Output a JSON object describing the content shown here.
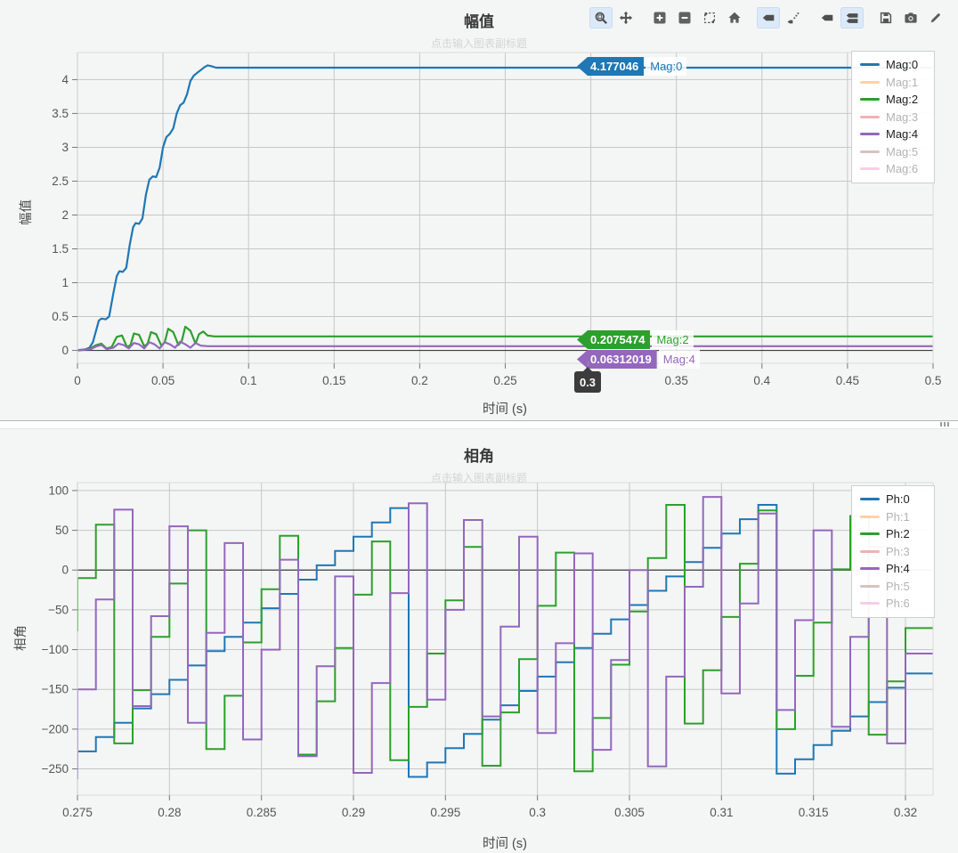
{
  "page": {
    "background": "#f4f5f5",
    "plot_background": "#f4f5f5",
    "grid_color": "#c7c7c7",
    "zero_line_color": "#3d3d3d",
    "axis_line_color": "#9a9a9a",
    "accent_active_tool": "#dce9f8"
  },
  "toolbar": {
    "tools": [
      {
        "name": "box-zoom",
        "icon": "box-zoom-icon",
        "active": true,
        "group_start": false
      },
      {
        "name": "pan",
        "icon": "pan-icon",
        "active": false,
        "group_start": false
      },
      {
        "name": "zoom-in",
        "icon": "plus-square-icon",
        "active": false,
        "group_start": true
      },
      {
        "name": "zoom-out",
        "icon": "minus-square-icon",
        "active": false,
        "group_start": false
      },
      {
        "name": "zoom-extent",
        "icon": "expand-icon",
        "active": false,
        "group_start": false
      },
      {
        "name": "reset-home",
        "icon": "home-icon",
        "active": false,
        "group_start": false
      },
      {
        "name": "hover-tag",
        "icon": "tag-icon",
        "active": true,
        "group_start": true
      },
      {
        "name": "point-trail",
        "icon": "trail-icon",
        "active": false,
        "group_start": false
      },
      {
        "name": "single-tag",
        "icon": "tag-icon",
        "active": false,
        "group_start": true
      },
      {
        "name": "stacked-tags",
        "icon": "stacked-tags-icon",
        "active": true,
        "group_start": false
      },
      {
        "name": "save",
        "icon": "floppy-icon",
        "active": false,
        "group_start": true
      },
      {
        "name": "snapshot",
        "icon": "camera-icon",
        "active": false,
        "group_start": false
      },
      {
        "name": "edit",
        "icon": "pencil-icon",
        "active": false,
        "group_start": false
      }
    ]
  },
  "chart_data": [
    {
      "type": "line",
      "title": "幅值",
      "subtitle": "点击输入图表副标题",
      "xlabel": "时间 (s)",
      "ylabel": "幅值",
      "xlim": [
        0,
        0.5
      ],
      "ylim": [
        -0.19,
        4.4
      ],
      "grid": true,
      "legend_position": "top-right",
      "xticks": {
        "values": [
          0,
          0.05,
          0.1,
          0.15,
          0.2,
          0.25,
          0.3,
          0.35,
          0.4,
          0.45,
          0.5
        ],
        "labels": [
          "0",
          "0.05",
          "0.1",
          "0.15",
          "0.2",
          "0.25",
          "0.3",
          "0.35",
          "0.4",
          "0.45",
          "0.5"
        ]
      },
      "yticks": {
        "values": [
          0,
          0.5,
          1,
          1.5,
          2,
          2.5,
          3,
          3.5,
          4
        ],
        "labels": [
          "0",
          "0.5",
          "1",
          "1.5",
          "2",
          "2.5",
          "3",
          "3.5",
          "4"
        ]
      },
      "series": [
        {
          "name": "Mag:0",
          "color": "#1f77b4",
          "muted": false,
          "points": [
            [
              0,
              0
            ],
            [
              0.004,
              0.01
            ],
            [
              0.007,
              0.04
            ],
            [
              0.009,
              0.12
            ],
            [
              0.011,
              0.3
            ],
            [
              0.0125,
              0.44
            ],
            [
              0.014,
              0.47
            ],
            [
              0.0165,
              0.46
            ],
            [
              0.0185,
              0.5
            ],
            [
              0.021,
              0.85
            ],
            [
              0.023,
              1.1
            ],
            [
              0.0245,
              1.17
            ],
            [
              0.0265,
              1.16
            ],
            [
              0.0285,
              1.22
            ],
            [
              0.0305,
              1.55
            ],
            [
              0.0325,
              1.82
            ],
            [
              0.034,
              1.88
            ],
            [
              0.036,
              1.87
            ],
            [
              0.038,
              1.95
            ],
            [
              0.04,
              2.3
            ],
            [
              0.042,
              2.52
            ],
            [
              0.044,
              2.57
            ],
            [
              0.046,
              2.56
            ],
            [
              0.048,
              2.7
            ],
            [
              0.05,
              3.0
            ],
            [
              0.052,
              3.15
            ],
            [
              0.054,
              3.2
            ],
            [
              0.056,
              3.28
            ],
            [
              0.058,
              3.5
            ],
            [
              0.06,
              3.62
            ],
            [
              0.062,
              3.66
            ],
            [
              0.064,
              3.78
            ],
            [
              0.066,
              3.98
            ],
            [
              0.068,
              4.06
            ],
            [
              0.07,
              4.1
            ],
            [
              0.072,
              4.14
            ],
            [
              0.074,
              4.18
            ],
            [
              0.076,
              4.21
            ],
            [
              0.078,
              4.2
            ],
            [
              0.081,
              4.177
            ],
            [
              0.5,
              4.177046
            ]
          ]
        },
        {
          "name": "Mag:1",
          "color": "#ff7f0e",
          "muted": true,
          "points": []
        },
        {
          "name": "Mag:2",
          "color": "#2ca02c",
          "muted": false,
          "points": [
            [
              0,
              0.005
            ],
            [
              0.007,
              0.02
            ],
            [
              0.011,
              0.08
            ],
            [
              0.014,
              0.1
            ],
            [
              0.017,
              0.03
            ],
            [
              0.02,
              0.05
            ],
            [
              0.023,
              0.2
            ],
            [
              0.026,
              0.22
            ],
            [
              0.029,
              0.05
            ],
            [
              0.031,
              0.08
            ],
            [
              0.033,
              0.25
            ],
            [
              0.036,
              0.23
            ],
            [
              0.039,
              0.06
            ],
            [
              0.041,
              0.1
            ],
            [
              0.043,
              0.27
            ],
            [
              0.046,
              0.24
            ],
            [
              0.049,
              0.07
            ],
            [
              0.051,
              0.12
            ],
            [
              0.053,
              0.32
            ],
            [
              0.056,
              0.27
            ],
            [
              0.059,
              0.08
            ],
            [
              0.061,
              0.14
            ],
            [
              0.063,
              0.35
            ],
            [
              0.066,
              0.29
            ],
            [
              0.069,
              0.1
            ],
            [
              0.071,
              0.24
            ],
            [
              0.0735,
              0.28
            ],
            [
              0.076,
              0.22
            ],
            [
              0.08,
              0.2075
            ],
            [
              0.5,
              0.2075474
            ]
          ]
        },
        {
          "name": "Mag:3",
          "color": "#d62728",
          "muted": true,
          "points": []
        },
        {
          "name": "Mag:4",
          "color": "#9467bd",
          "muted": false,
          "points": [
            [
              0,
              0.003
            ],
            [
              0.008,
              0.02
            ],
            [
              0.011,
              0.06
            ],
            [
              0.014,
              0.08
            ],
            [
              0.017,
              0.02
            ],
            [
              0.021,
              0.04
            ],
            [
              0.024,
              0.1
            ],
            [
              0.027,
              0.08
            ],
            [
              0.03,
              0.03
            ],
            [
              0.033,
              0.11
            ],
            [
              0.036,
              0.09
            ],
            [
              0.039,
              0.03
            ],
            [
              0.042,
              0.12
            ],
            [
              0.045,
              0.09
            ],
            [
              0.048,
              0.03
            ],
            [
              0.051,
              0.12
            ],
            [
              0.054,
              0.09
            ],
            [
              0.057,
              0.04
            ],
            [
              0.06,
              0.13
            ],
            [
              0.063,
              0.09
            ],
            [
              0.066,
              0.04
            ],
            [
              0.069,
              0.11
            ],
            [
              0.072,
              0.07
            ],
            [
              0.076,
              0.063
            ],
            [
              0.5,
              0.06312019
            ]
          ]
        },
        {
          "name": "Mag:5",
          "color": "#8c564b",
          "muted": true,
          "points": []
        },
        {
          "name": "Mag:6",
          "color": "#e377c2",
          "muted": true,
          "points": []
        }
      ],
      "hover_labels": [
        {
          "text": "4.177046",
          "series": "Mag:0",
          "x": 0.3,
          "y": 4.177046,
          "color": "#1f77b4"
        },
        {
          "text": "0.2075474",
          "series": "Mag:2",
          "x": 0.3,
          "y": 0.2075474,
          "color": "#2ca02c"
        },
        {
          "text": "0.06312019",
          "series": "Mag:4",
          "x": 0.3,
          "y": 0.06312019,
          "color": "#9467bd"
        }
      ],
      "axis_hover": {
        "text": "0.3",
        "x": 0.3
      }
    },
    {
      "type": "step",
      "title": "相角",
      "subtitle": "点击输入图表副标题",
      "xlabel": "时间 (s)",
      "ylabel": "相角",
      "xlim": [
        0.275,
        0.3215
      ],
      "ylim": [
        -283,
        110
      ],
      "grid": true,
      "legend_position": "top-right",
      "x_start": 0.275,
      "x_step": 0.001,
      "xticks": {
        "values": [
          0.275,
          0.28,
          0.285,
          0.29,
          0.295,
          0.3,
          0.305,
          0.31,
          0.315,
          0.32
        ],
        "labels": [
          "0.275",
          "0.28",
          "0.285",
          "0.29",
          "0.295",
          "0.3",
          "0.305",
          "0.31",
          "0.315",
          "0.32"
        ]
      },
      "yticks": {
        "values": [
          100,
          50,
          0,
          -50,
          -100,
          -150,
          -200,
          -250
        ],
        "labels": [
          "100",
          "50",
          "0",
          "−50",
          "−100",
          "−150",
          "−200",
          "−250"
        ]
      },
      "series": [
        {
          "name": "Ph:0",
          "color": "#1f77b4",
          "muted": false,
          "prev": -246,
          "values": [
            -228,
            -210,
            -192,
            -174,
            -156,
            -138,
            -120,
            -102,
            -84,
            -66,
            -48,
            -30,
            -12,
            6,
            24,
            42,
            60,
            78,
            -260,
            -242,
            -224,
            -206,
            -188,
            -170,
            -152,
            -134,
            -116,
            -98,
            -80,
            -62,
            -44,
            -26,
            -8,
            10,
            28,
            46,
            64,
            82,
            -256,
            -238,
            -220,
            -202,
            -184,
            -166,
            -148,
            -130
          ]
        },
        {
          "name": "Ph:1",
          "color": "#ff7f0e",
          "muted": true,
          "prev": 0,
          "values": []
        },
        {
          "name": "Ph:2",
          "color": "#2ca02c",
          "muted": false,
          "prev": -77,
          "values": [
            -10,
            57,
            -218,
            -151,
            -84,
            -17,
            50,
            -225,
            -158,
            -91,
            -24,
            43,
            -232,
            -165,
            -98,
            -31,
            36,
            -239,
            -172,
            -105,
            -38,
            29,
            -246,
            -179,
            -112,
            -45,
            22,
            -253,
            -186,
            -119,
            -52,
            15,
            82,
            -193,
            -126,
            -59,
            8,
            75,
            -200,
            -133,
            -66,
            1,
            68,
            -207,
            -140,
            -73
          ]
        },
        {
          "name": "Ph:3",
          "color": "#d62728",
          "muted": true,
          "prev": 0,
          "values": []
        },
        {
          "name": "Ph:4",
          "color": "#9467bd",
          "muted": false,
          "prev": -263,
          "values": [
            -150,
            -37,
            76,
            -171,
            -58,
            55,
            -192,
            -79,
            34,
            -213,
            -100,
            13,
            -234,
            -121,
            -8,
            -255,
            -142,
            -29,
            84,
            -163,
            -50,
            63,
            -184,
            -71,
            42,
            -205,
            -92,
            21,
            -226,
            -113,
            0,
            -247,
            -134,
            -21,
            92,
            -155,
            -42,
            71,
            -176,
            -63,
            50,
            -197,
            -84,
            29,
            -218,
            -105
          ]
        },
        {
          "name": "Ph:5",
          "color": "#8c564b",
          "muted": true,
          "prev": 0,
          "values": []
        },
        {
          "name": "Ph:6",
          "color": "#e377c2",
          "muted": true,
          "prev": 0,
          "values": []
        }
      ]
    }
  ]
}
